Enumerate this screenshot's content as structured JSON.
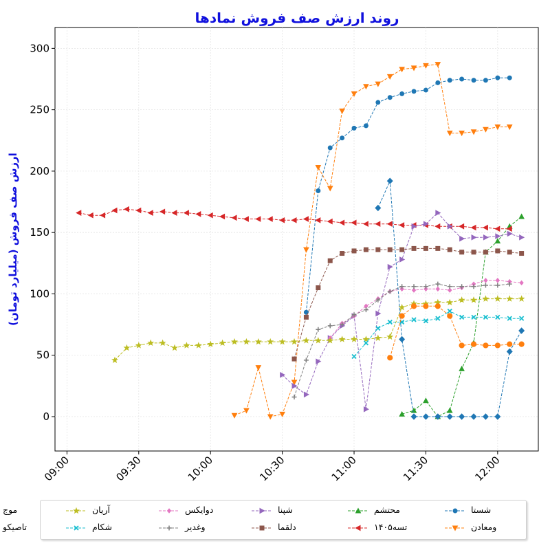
{
  "chart_data": {
    "type": "line",
    "title": "روند ارزش صف فروش نمادها",
    "ylabel": "ارزش صف فروش (میلیارد تومان)",
    "xlabel": "",
    "ylim": [
      -28,
      317
    ],
    "xlim": [
      "08:55",
      "12:17"
    ],
    "yticks": [
      0,
      50,
      100,
      150,
      200,
      250,
      300
    ],
    "xticks": [
      "09:00",
      "09:30",
      "10:00",
      "10:30",
      "11:00",
      "11:30",
      "12:00"
    ],
    "grid": true,
    "legend_position": "bottom",
    "series": [
      {
        "name": "شستا",
        "color": "#1f77b4",
        "marker": "circle",
        "points": [
          [
            "10:40",
            85
          ],
          [
            "10:45",
            184
          ],
          [
            "10:50",
            219
          ],
          [
            "10:55",
            227
          ],
          [
            "11:00",
            235
          ],
          [
            "11:05",
            237
          ],
          [
            "11:10",
            256
          ],
          [
            "11:15",
            260
          ],
          [
            "11:20",
            263
          ],
          [
            "11:25",
            265
          ],
          [
            "11:30",
            266
          ],
          [
            "11:35",
            272
          ],
          [
            "11:40",
            274
          ],
          [
            "11:45",
            275
          ],
          [
            "11:50",
            274
          ],
          [
            "11:55",
            274
          ],
          [
            "12:00",
            276
          ],
          [
            "12:05",
            276
          ]
        ]
      },
      {
        "name": "ومعادن",
        "color": "#ff7f0e",
        "marker": "triangle-down",
        "points": [
          [
            "10:10",
            1
          ],
          [
            "10:15",
            5
          ],
          [
            "10:20",
            40
          ],
          [
            "10:25",
            0
          ],
          [
            "10:30",
            2
          ],
          [
            "10:35",
            28
          ],
          [
            "10:40",
            136
          ],
          [
            "10:45",
            203
          ],
          [
            "10:50",
            186
          ],
          [
            "10:55",
            249
          ],
          [
            "11:00",
            263
          ],
          [
            "11:05",
            269
          ],
          [
            "11:10",
            271
          ],
          [
            "11:15",
            277
          ],
          [
            "11:20",
            283
          ],
          [
            "11:25",
            284
          ],
          [
            "11:30",
            286
          ],
          [
            "11:35",
            287
          ],
          [
            "11:40",
            231
          ],
          [
            "11:45",
            231
          ],
          [
            "11:50",
            232
          ],
          [
            "11:55",
            234
          ],
          [
            "12:00",
            236
          ],
          [
            "12:05",
            236
          ]
        ]
      },
      {
        "name": "محتشم",
        "color": "#2ca02c",
        "marker": "triangle-up",
        "points": [
          [
            "11:20",
            2
          ],
          [
            "11:25",
            5
          ],
          [
            "11:30",
            13
          ],
          [
            "11:35",
            0
          ],
          [
            "11:40",
            5
          ],
          [
            "11:45",
            39
          ],
          [
            "11:50",
            60
          ],
          [
            "11:55",
            134
          ],
          [
            "12:00",
            143
          ],
          [
            "12:05",
            155
          ],
          [
            "12:10",
            163
          ]
        ]
      },
      {
        "name": "تسه۱۴۰۵",
        "color": "#d62728",
        "marker": "triangle-left",
        "points": [
          [
            "09:05",
            166
          ],
          [
            "09:10",
            164
          ],
          [
            "09:15",
            164
          ],
          [
            "09:20",
            168
          ],
          [
            "09:25",
            169
          ],
          [
            "09:30",
            168
          ],
          [
            "09:35",
            166
          ],
          [
            "09:40",
            167
          ],
          [
            "09:45",
            166
          ],
          [
            "09:50",
            166
          ],
          [
            "09:55",
            165
          ],
          [
            "10:00",
            164
          ],
          [
            "10:05",
            163
          ],
          [
            "10:10",
            162
          ],
          [
            "10:15",
            161
          ],
          [
            "10:20",
            161
          ],
          [
            "10:25",
            161
          ],
          [
            "10:30",
            160
          ],
          [
            "10:35",
            160
          ],
          [
            "10:40",
            161
          ],
          [
            "10:45",
            160
          ],
          [
            "10:50",
            159
          ],
          [
            "10:55",
            158
          ],
          [
            "11:00",
            158
          ],
          [
            "11:05",
            157
          ],
          [
            "11:10",
            157
          ],
          [
            "11:15",
            157
          ],
          [
            "11:20",
            156
          ],
          [
            "11:25",
            156
          ],
          [
            "11:30",
            156
          ],
          [
            "11:35",
            155
          ],
          [
            "11:40",
            155
          ],
          [
            "11:45",
            155
          ],
          [
            "11:50",
            154
          ],
          [
            "11:55",
            154
          ],
          [
            "12:00",
            153
          ],
          [
            "12:05",
            153
          ]
        ]
      },
      {
        "name": "شپنا",
        "color": "#9467bd",
        "marker": "triangle-right",
        "points": [
          [
            "10:30",
            34
          ],
          [
            "10:35",
            25
          ],
          [
            "10:40",
            18
          ],
          [
            "10:45",
            45
          ],
          [
            "10:50",
            64
          ],
          [
            "10:55",
            74
          ],
          [
            "11:00",
            82
          ],
          [
            "11:05",
            6
          ],
          [
            "11:10",
            84
          ],
          [
            "11:15",
            122
          ],
          [
            "11:20",
            128
          ],
          [
            "11:25",
            155
          ],
          [
            "11:30",
            157
          ],
          [
            "11:35",
            166
          ],
          [
            "11:40",
            155
          ],
          [
            "11:45",
            145
          ],
          [
            "11:50",
            146
          ],
          [
            "11:55",
            146
          ],
          [
            "12:00",
            147
          ],
          [
            "12:05",
            149
          ],
          [
            "12:10",
            146
          ]
        ]
      },
      {
        "name": "دلقما",
        "color": "#8c564b",
        "marker": "square",
        "points": [
          [
            "10:35",
            47
          ],
          [
            "10:40",
            81
          ],
          [
            "10:45",
            105
          ],
          [
            "10:50",
            127
          ],
          [
            "10:55",
            133
          ],
          [
            "11:00",
            135
          ],
          [
            "11:05",
            136
          ],
          [
            "11:10",
            136
          ],
          [
            "11:15",
            136
          ],
          [
            "11:20",
            136
          ],
          [
            "11:25",
            137
          ],
          [
            "11:30",
            137
          ],
          [
            "11:35",
            137
          ],
          [
            "11:40",
            136
          ],
          [
            "11:45",
            134
          ],
          [
            "11:50",
            134
          ],
          [
            "11:55",
            134
          ],
          [
            "12:00",
            135
          ],
          [
            "12:05",
            134
          ],
          [
            "12:10",
            133
          ]
        ]
      },
      {
        "name": "دوایکس",
        "color": "#e377c2",
        "marker": "diamond",
        "points": [
          [
            "10:50",
            64
          ],
          [
            "10:55",
            76
          ],
          [
            "11:00",
            82
          ],
          [
            "11:05",
            90
          ],
          [
            "11:10",
            96
          ],
          [
            "11:15",
            102
          ],
          [
            "11:20",
            104
          ],
          [
            "11:25",
            103
          ],
          [
            "11:30",
            104
          ],
          [
            "11:35",
            104
          ],
          [
            "11:40",
            103
          ],
          [
            "11:45",
            105
          ],
          [
            "11:50",
            108
          ],
          [
            "11:55",
            111
          ],
          [
            "12:00",
            111
          ],
          [
            "12:05",
            110
          ],
          [
            "12:10",
            109
          ]
        ]
      },
      {
        "name": "وغدیر",
        "color": "#7f7f7f",
        "marker": "plus",
        "points": [
          [
            "10:35",
            16
          ],
          [
            "10:40",
            46
          ],
          [
            "10:45",
            71
          ],
          [
            "10:50",
            74
          ],
          [
            "10:55",
            75
          ],
          [
            "11:00",
            83
          ],
          [
            "11:05",
            87
          ],
          [
            "11:10",
            95
          ],
          [
            "11:15",
            102
          ],
          [
            "11:20",
            106
          ],
          [
            "11:25",
            106
          ],
          [
            "11:30",
            106
          ],
          [
            "11:35",
            108
          ],
          [
            "11:40",
            106
          ],
          [
            "11:45",
            106
          ],
          [
            "11:50",
            106
          ],
          [
            "11:55",
            107
          ],
          [
            "12:00",
            107
          ],
          [
            "12:05",
            108
          ]
        ]
      },
      {
        "name": "آریان",
        "color": "#bcbd22",
        "marker": "star",
        "points": [
          [
            "09:20",
            46
          ],
          [
            "09:25",
            56
          ],
          [
            "09:30",
            58
          ],
          [
            "09:35",
            60
          ],
          [
            "09:40",
            60
          ],
          [
            "09:45",
            56
          ],
          [
            "09:50",
            58
          ],
          [
            "09:55",
            58
          ],
          [
            "10:00",
            59
          ],
          [
            "10:05",
            60
          ],
          [
            "10:10",
            61
          ],
          [
            "10:15",
            61
          ],
          [
            "10:20",
            61
          ],
          [
            "10:25",
            61
          ],
          [
            "10:30",
            61
          ],
          [
            "10:35",
            61
          ],
          [
            "10:40",
            62
          ],
          [
            "10:45",
            62
          ],
          [
            "10:50",
            62
          ],
          [
            "10:55",
            63
          ],
          [
            "11:00",
            63
          ],
          [
            "11:05",
            63
          ],
          [
            "11:10",
            64
          ],
          [
            "11:15",
            65
          ],
          [
            "11:20",
            89
          ],
          [
            "11:25",
            92
          ],
          [
            "11:30",
            92
          ],
          [
            "11:35",
            93
          ],
          [
            "11:40",
            93
          ],
          [
            "11:45",
            95
          ],
          [
            "11:50",
            95
          ],
          [
            "11:55",
            96
          ],
          [
            "12:00",
            96
          ],
          [
            "12:05",
            96
          ],
          [
            "12:10",
            96
          ]
        ]
      },
      {
        "name": "شکام",
        "color": "#17becf",
        "marker": "x",
        "points": [
          [
            "11:00",
            49
          ],
          [
            "11:05",
            60
          ],
          [
            "11:10",
            72
          ],
          [
            "11:15",
            77
          ],
          [
            "11:20",
            77
          ],
          [
            "11:25",
            79
          ],
          [
            "11:30",
            78
          ],
          [
            "11:35",
            80
          ],
          [
            "11:40",
            86
          ],
          [
            "11:45",
            81
          ],
          [
            "11:50",
            81
          ],
          [
            "11:55",
            81
          ],
          [
            "12:00",
            81
          ],
          [
            "12:05",
            80
          ],
          [
            "12:10",
            80
          ]
        ]
      },
      {
        "name": "موج",
        "color": "#1f77b4",
        "marker": "diamond-thick",
        "points": [
          [
            "11:10",
            170
          ],
          [
            "11:15",
            192
          ],
          [
            "11:20",
            63
          ],
          [
            "11:25",
            0
          ],
          [
            "11:30",
            0
          ],
          [
            "11:35",
            0
          ],
          [
            "11:40",
            0
          ],
          [
            "11:45",
            0
          ],
          [
            "11:50",
            0
          ],
          [
            "11:55",
            0
          ],
          [
            "12:00",
            0
          ],
          [
            "12:05",
            53
          ],
          [
            "12:10",
            70
          ]
        ]
      },
      {
        "name": "تاصیکو",
        "color": "#ff7f0e",
        "marker": "circle-large",
        "points": [
          [
            "11:15",
            48
          ],
          [
            "11:20",
            82
          ],
          [
            "11:25",
            90
          ],
          [
            "11:30",
            90
          ],
          [
            "11:35",
            90
          ],
          [
            "11:40",
            82
          ],
          [
            "11:45",
            58
          ],
          [
            "11:50",
            59
          ],
          [
            "11:55",
            58
          ],
          [
            "12:00",
            58
          ],
          [
            "12:05",
            59
          ],
          [
            "12:10",
            59
          ]
        ]
      }
    ]
  }
}
